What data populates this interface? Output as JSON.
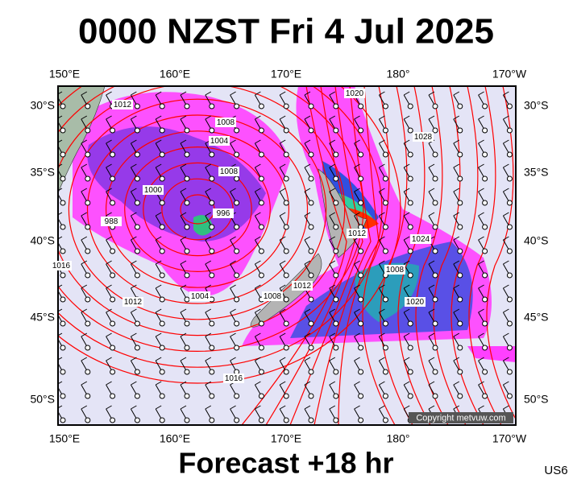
{
  "header": {
    "title": "0000 NZST Fri 4 Jul 2025"
  },
  "map": {
    "longitudes": [
      "150°E",
      "160°E",
      "170°E",
      "180°",
      "170°W"
    ],
    "latitudes": [
      "30°S",
      "35°S",
      "40°S",
      "45°S",
      "50°S"
    ],
    "isobar_labels": [
      "1012",
      "1008",
      "1004",
      "1008",
      "1000",
      "996",
      "988",
      "1016",
      "1012",
      "1004",
      "1008",
      "1012",
      "1020",
      "1028",
      "1012",
      "1024",
      "1008",
      "1020",
      "1016"
    ],
    "copyright": "Copyright metvuw.com"
  },
  "footer": {
    "forecast": "Forecast +18 hr",
    "code": "US6"
  }
}
